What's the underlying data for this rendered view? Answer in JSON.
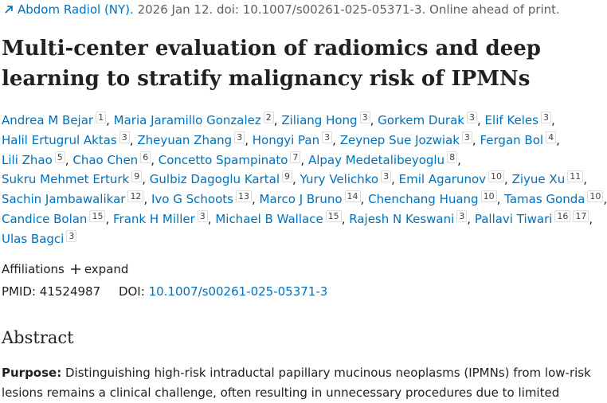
{
  "citation": {
    "journal": "Abdom Radiol (NY).",
    "details": "2026 Jan 12. doi: 10.1007/s00261-025-05371-3. Online ahead of print."
  },
  "title": "Multi-center evaluation of radiomics and deep learning to stratify malignancy risk of IPMNs",
  "author_separator": ",",
  "authors": [
    {
      "name": "Andrea M Bejar",
      "affiliations": [
        "1"
      ]
    },
    {
      "name": "Maria Jaramillo Gonzalez",
      "affiliations": [
        "2"
      ]
    },
    {
      "name": "Ziliang Hong",
      "affiliations": [
        "3"
      ]
    },
    {
      "name": "Gorkem Durak",
      "affiliations": [
        "3"
      ]
    },
    {
      "name": "Elif Keles",
      "affiliations": [
        "3"
      ]
    },
    {
      "name": "Halil Ertugrul Aktas",
      "affiliations": [
        "3"
      ]
    },
    {
      "name": "Zheyuan Zhang",
      "affiliations": [
        "3"
      ]
    },
    {
      "name": "Hongyi Pan",
      "affiliations": [
        "3"
      ]
    },
    {
      "name": "Zeynep Sue Jozwiak",
      "affiliations": [
        "3"
      ]
    },
    {
      "name": "Fergan Bol",
      "affiliations": [
        "4"
      ]
    },
    {
      "name": "Lili Zhao",
      "affiliations": [
        "5"
      ]
    },
    {
      "name": "Chao Chen",
      "affiliations": [
        "6"
      ]
    },
    {
      "name": "Concetto Spampinato",
      "affiliations": [
        "7"
      ]
    },
    {
      "name": "Alpay Medetalibeyoglu",
      "affiliations": [
        "8"
      ]
    },
    {
      "name": "Sukru Mehmet Erturk",
      "affiliations": [
        "9"
      ]
    },
    {
      "name": "Gulbiz Dagoglu Kartal",
      "affiliations": [
        "9"
      ]
    },
    {
      "name": "Yury Velichko",
      "affiliations": [
        "3"
      ]
    },
    {
      "name": "Emil Agarunov",
      "affiliations": [
        "10"
      ]
    },
    {
      "name": "Ziyue Xu",
      "affiliations": [
        "11"
      ]
    },
    {
      "name": "Sachin Jambawalikar",
      "affiliations": [
        "12"
      ]
    },
    {
      "name": "Ivo G Schoots",
      "affiliations": [
        "13"
      ]
    },
    {
      "name": "Marco J Bruno",
      "affiliations": [
        "14"
      ]
    },
    {
      "name": "Chenchang Huang",
      "affiliations": [
        "10"
      ]
    },
    {
      "name": "Tamas Gonda",
      "affiliations": [
        "10"
      ]
    },
    {
      "name": "Candice Bolan",
      "affiliations": [
        "15"
      ]
    },
    {
      "name": "Frank H Miller",
      "affiliations": [
        "3"
      ]
    },
    {
      "name": "Michael B Wallace",
      "affiliations": [
        "15"
      ]
    },
    {
      "name": "Rajesh N Keswani",
      "affiliations": [
        "3"
      ]
    },
    {
      "name": "Pallavi Tiwari",
      "affiliations": [
        "16",
        "17"
      ]
    },
    {
      "name": "Ulas Bagci",
      "affiliations": [
        "3"
      ]
    }
  ],
  "affiliations_toggle": {
    "label": "Affiliations",
    "action": "expand"
  },
  "identifiers": {
    "pmid_label": "PMID:",
    "pmid": "41524987",
    "doi_label": "DOI:",
    "doi": "10.1007/s00261-025-05371-3"
  },
  "abstract": {
    "heading": "Abstract",
    "purpose_label": "Purpose:",
    "purpose_text": "Distinguishing high-risk intraductal papillary mucinous neoplasms (IPMNs) from low-risk lesions remains a clinical challenge, often resulting in unnecessary procedures due to limited"
  }
}
